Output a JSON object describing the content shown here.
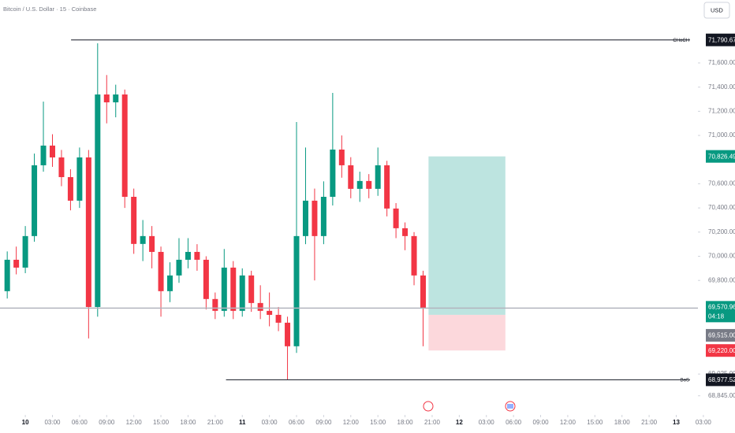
{
  "chart_data": {
    "type": "candlestick",
    "title": "Bitcoin / U.S. Dollar · 15 · Coinbase",
    "currency": "USD",
    "up_color": "#089981",
    "down_color": "#f23645",
    "xlim": [
      -2.8,
      74.4
    ],
    "ylim": [
      68700,
      72121
    ],
    "xticks": [
      {
        "value": 0,
        "label": "10"
      },
      {
        "value": 3,
        "label": "03:00"
      },
      {
        "value": 6,
        "label": "06:00"
      },
      {
        "value": 9,
        "label": "09:00"
      },
      {
        "value": 12,
        "label": "12:00"
      },
      {
        "value": 15,
        "label": "15:00"
      },
      {
        "value": 18,
        "label": "18:00"
      },
      {
        "value": 21,
        "label": "21:00"
      },
      {
        "value": 24,
        "label": "11"
      },
      {
        "value": 27,
        "label": "03:00"
      },
      {
        "value": 30,
        "label": "06:00"
      },
      {
        "value": 33,
        "label": "09:00"
      },
      {
        "value": 36,
        "label": "12:00"
      },
      {
        "value": 39,
        "label": "15:00"
      },
      {
        "value": 42,
        "label": "18:00"
      },
      {
        "value": 45,
        "label": "21:00"
      },
      {
        "value": 48,
        "label": "12"
      },
      {
        "value": 51,
        "label": "03:00"
      },
      {
        "value": 54,
        "label": "06:00"
      },
      {
        "value": 57,
        "label": "09:00"
      },
      {
        "value": 60,
        "label": "12:00"
      },
      {
        "value": 63,
        "label": "15:00"
      },
      {
        "value": 66,
        "label": "18:00"
      },
      {
        "value": 69,
        "label": "21:00"
      },
      {
        "value": 72,
        "label": "13"
      },
      {
        "value": 75,
        "label": "03:00"
      }
    ],
    "yticks": [
      {
        "value": 71600,
        "label": "71,600.00"
      },
      {
        "value": 71400,
        "label": "71,400.00"
      },
      {
        "value": 71200,
        "label": "71,200.00"
      },
      {
        "value": 71000,
        "label": "71,000.00"
      },
      {
        "value": 70600,
        "label": "70,600.00"
      },
      {
        "value": 70400,
        "label": "70,400.00"
      },
      {
        "value": 70200,
        "label": "70,200.00"
      },
      {
        "value": 70000,
        "label": "70,000.00"
      },
      {
        "value": 69800,
        "label": "69,800.00"
      },
      {
        "value": 69025,
        "label": "69,025.00"
      },
      {
        "value": 68845,
        "label": "68,845.00"
      }
    ],
    "x": [
      -2,
      -1,
      0,
      1,
      2,
      3,
      4,
      5,
      6,
      7,
      8,
      9,
      10,
      11,
      12,
      13,
      14,
      15,
      16,
      17,
      18,
      19,
      20,
      21,
      22,
      23,
      24,
      25,
      26,
      27,
      28,
      29,
      30,
      31,
      32,
      33,
      34,
      35,
      36,
      37,
      38,
      39,
      40,
      41,
      42,
      43,
      44
    ],
    "open": [
      69711,
      69971,
      69906,
      70167,
      70753,
      70916,
      70818,
      70655,
      70460,
      70818,
      69580,
      71339,
      71274,
      71339,
      70492,
      70102,
      70167,
      70036,
      69711,
      69841,
      69971,
      70036,
      69971,
      69646,
      69548,
      69906,
      69548,
      69841,
      69613,
      69548,
      69515,
      69450,
      69255,
      70167,
      70460,
      70167,
      70492,
      70883,
      70753,
      70558,
      70623,
      70558,
      70753,
      70395,
      70232,
      70167,
      69841
    ],
    "high": [
      70040,
      70080,
      70250,
      70850,
      71280,
      71010,
      70880,
      70720,
      70900,
      70880,
      71763,
      71500,
      71420,
      71380,
      70560,
      70300,
      70250,
      70080,
      69950,
      70150,
      70150,
      70100,
      70000,
      69700,
      70060,
      69960,
      69900,
      69880,
      69760,
      69700,
      69580,
      69500,
      71111,
      70900,
      70560,
      70620,
      71352,
      71000,
      70820,
      70700,
      70680,
      70900,
      70790,
      70440,
      70280,
      70200,
      69880
    ],
    "low": [
      69650,
      69850,
      69860,
      70120,
      70700,
      70740,
      70580,
      70380,
      70400,
      69320,
      69500,
      71100,
      71150,
      70400,
      70020,
      69960,
      69900,
      69500,
      69620,
      69780,
      69900,
      69880,
      69560,
      69480,
      69500,
      69480,
      69500,
      69540,
      69480,
      69420,
      69380,
      68978,
      69200,
      70100,
      69800,
      70100,
      70420,
      70650,
      70480,
      70450,
      70480,
      70500,
      70330,
      70150,
      70050,
      69760,
      69255
    ],
    "close": [
      69971,
      69906,
      70167,
      70753,
      70916,
      70818,
      70655,
      70460,
      70818,
      69580,
      71339,
      71274,
      71339,
      70492,
      70102,
      70167,
      70036,
      69711,
      69841,
      69971,
      70036,
      69971,
      69646,
      69548,
      69906,
      69548,
      69841,
      69613,
      69548,
      69515,
      69450,
      69255,
      70167,
      70460,
      70167,
      70492,
      70883,
      70753,
      70558,
      70623,
      70558,
      70753,
      70395,
      70232,
      70167,
      69841,
      69571
    ],
    "levels": [
      {
        "name": "CHoCH",
        "value": 71790.67,
        "label": "71,790.67",
        "x0": 5.06
      },
      {
        "name": "BoS",
        "value": 68977.52,
        "label": "68,977.52",
        "x0": 22.2
      }
    ],
    "current": {
      "value": 69570.96,
      "label": "69,570.96",
      "countdown": "04:18"
    },
    "position": {
      "x": [
        44.6,
        53.1
      ],
      "entry": 69515,
      "entry_label": "69,515.00",
      "target": 70826.49,
      "target_label": "70,826.49",
      "stop": 69220,
      "stop_label": "69,220.00"
    }
  }
}
